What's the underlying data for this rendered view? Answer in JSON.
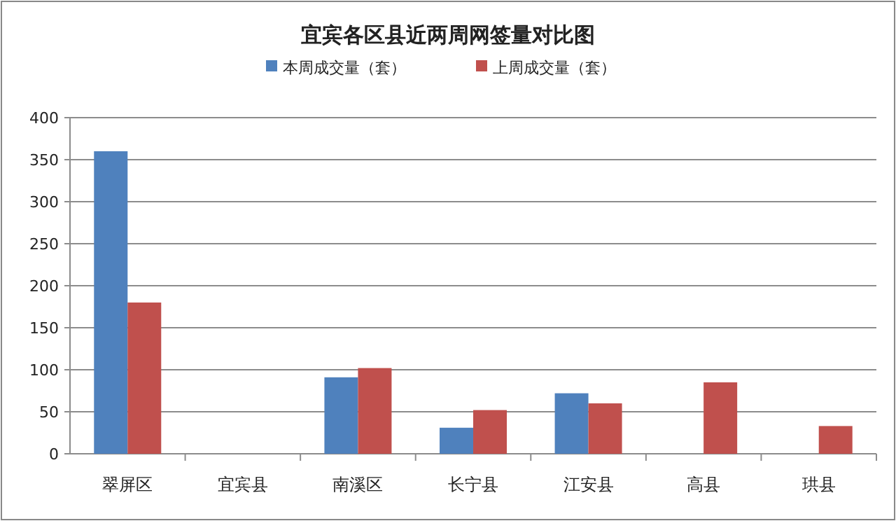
{
  "chart_data": {
    "type": "bar",
    "title": "宜宾各区县近两周网签量对比图",
    "categories": [
      "翠屏区",
      "宜宾县",
      "南溪区",
      "长宁县",
      "江安县",
      "高县",
      "珙县"
    ],
    "series": [
      {
        "name": "本周成交量（套）",
        "color": "#4f81bd",
        "values": [
          360,
          0,
          91,
          31,
          72,
          null,
          null
        ]
      },
      {
        "name": "上周成交量（套）",
        "color": "#c0504d",
        "values": [
          180,
          0,
          102,
          52,
          60,
          85,
          33
        ]
      }
    ],
    "ylim": [
      0,
      400
    ],
    "yticks": [
      0,
      50,
      100,
      150,
      200,
      250,
      300,
      350,
      400
    ],
    "grid": "y",
    "legend": "top"
  }
}
